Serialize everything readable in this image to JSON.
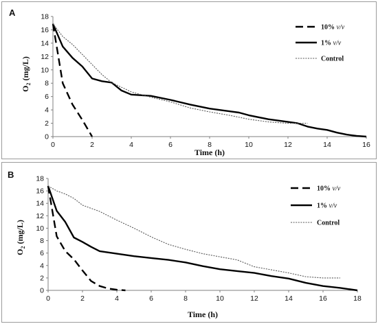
{
  "chart_data": [
    {
      "panel": "A",
      "type": "line",
      "xlabel": "Time (h)",
      "ylabel": "O2 (mg/L)",
      "xlim": [
        0,
        16
      ],
      "ylim": [
        0,
        18
      ],
      "xticks": [
        "0",
        "2",
        "4",
        "6",
        "8",
        "10",
        "12",
        "14",
        "16"
      ],
      "yticks": [
        "0",
        "2",
        "4",
        "6",
        "8",
        "10",
        "12",
        "14",
        "16",
        "18"
      ],
      "grid": false,
      "legend_position": "top-right",
      "series": [
        {
          "name": "10% v/v",
          "label_main": "10%",
          "label_unit": "v/v",
          "style": "dashed",
          "color": "#000000",
          "x": [
            0,
            0.25,
            0.5,
            1,
            1.5,
            2
          ],
          "y": [
            16.9,
            12.5,
            8,
            4.8,
            2.5,
            0
          ]
        },
        {
          "name": "1% v/v",
          "label_main": "1%",
          "label_unit": "v/v",
          "style": "solid",
          "color": "#000000",
          "x": [
            0,
            0.5,
            1,
            1.5,
            2,
            2.5,
            3,
            3.5,
            4,
            5,
            6,
            7,
            8,
            9,
            9.5,
            10,
            11,
            12,
            12.5,
            13,
            13.5,
            14,
            14.5,
            15,
            15.5,
            16
          ],
          "y": [
            16.9,
            13.5,
            11.8,
            10.5,
            8.7,
            8.3,
            8.1,
            6.9,
            6.3,
            6.1,
            5.5,
            4.8,
            4.2,
            3.8,
            3.6,
            3.2,
            2.6,
            2.2,
            2.0,
            1.5,
            1.2,
            1.0,
            0.6,
            0.3,
            0.1,
            0
          ]
        },
        {
          "name": "Control",
          "label_main": "Control",
          "label_unit": "",
          "style": "dotted",
          "color": "#555555",
          "x": [
            0,
            0.5,
            1,
            1.5,
            2,
            2.5,
            3,
            4,
            5,
            6,
            7,
            8,
            9,
            10,
            11,
            12,
            13
          ],
          "y": [
            16.9,
            15,
            13.8,
            12.3,
            10.8,
            9.3,
            8.1,
            6.7,
            5.9,
            5.2,
            4.3,
            3.7,
            3.2,
            2.6,
            2.2,
            2.0,
            2.0
          ]
        }
      ]
    },
    {
      "panel": "B",
      "type": "line",
      "xlabel": "Time (h)",
      "ylabel": "O2 (mg/L)",
      "xlim": [
        0,
        18
      ],
      "ylim": [
        0,
        18
      ],
      "xticks": [
        "0",
        "2",
        "4",
        "6",
        "8",
        "10",
        "12",
        "14",
        "16",
        "18"
      ],
      "yticks": [
        "0",
        "2",
        "4",
        "6",
        "8",
        "10",
        "12",
        "14",
        "16",
        "18"
      ],
      "grid": false,
      "legend_position": "top-right",
      "series": [
        {
          "name": "10% v/v",
          "label_main": "10%",
          "label_unit": "v/v",
          "style": "dashed",
          "color": "#000000",
          "x": [
            0,
            0.5,
            1,
            1.5,
            2,
            2.5,
            3,
            3.5,
            4,
            4.5
          ],
          "y": [
            16.8,
            8.7,
            6.3,
            5.0,
            3.2,
            1.5,
            0.7,
            0.3,
            0.1,
            0
          ]
        },
        {
          "name": "1% v/v",
          "label_main": "1%",
          "label_unit": "v/v",
          "style": "solid",
          "color": "#000000",
          "x": [
            0,
            0.5,
            1,
            1.5,
            2,
            2.5,
            3,
            4,
            5,
            6,
            7,
            8,
            9,
            10,
            11,
            12,
            13,
            14,
            15,
            16,
            17,
            18
          ],
          "y": [
            16.8,
            12.8,
            11.0,
            8.5,
            7.8,
            7.0,
            6.3,
            5.9,
            5.5,
            5.2,
            4.9,
            4.5,
            3.9,
            3.4,
            3.1,
            2.8,
            2.3,
            1.9,
            1.2,
            0.7,
            0.4,
            0
          ]
        },
        {
          "name": "Control",
          "label_main": "Control",
          "label_unit": "",
          "style": "dotted",
          "color": "#555555",
          "x": [
            0,
            0.5,
            1,
            1.5,
            2,
            3,
            4,
            5,
            6,
            7,
            8,
            9,
            10,
            11,
            12,
            13,
            14,
            15,
            16,
            17
          ],
          "y": [
            16.8,
            16.0,
            15.5,
            14.8,
            13.7,
            12.7,
            11.3,
            10.0,
            8.6,
            7.4,
            6.6,
            5.9,
            5.4,
            4.9,
            3.8,
            3.3,
            2.8,
            2.2,
            2.0,
            2.0
          ]
        }
      ]
    }
  ]
}
